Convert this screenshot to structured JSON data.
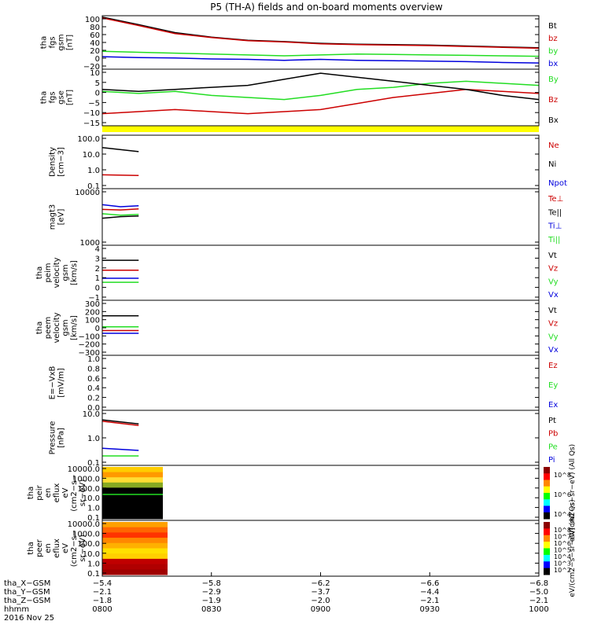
{
  "title": "P5 (TH-A) fields and on-board moments overview",
  "colors": {
    "black": "#000000",
    "red": "#cc0000",
    "green": "#22dd22",
    "blue": "#0000dd",
    "yellow": "#ffff00"
  },
  "chart_data": [
    {
      "type": "line",
      "id": "fgs_gsm",
      "ylabel": [
        "tha",
        "fgs",
        "gsm",
        "[nT]"
      ],
      "yticks": [
        "100",
        "80",
        "60",
        "40",
        "20",
        "0",
        "−20"
      ],
      "ylim": [
        -20,
        100
      ],
      "legend": [
        {
          "name": "Bt",
          "color": "black"
        },
        {
          "name": "bz",
          "color": "red"
        },
        {
          "name": "by",
          "color": "green"
        },
        {
          "name": "bx",
          "color": "blue"
        }
      ],
      "series": [
        {
          "name": "Bt",
          "color": "black",
          "x": [
            0,
            10,
            20,
            30,
            40,
            50,
            60,
            70,
            80,
            90,
            100,
            110,
            120
          ],
          "y": [
            97,
            80,
            62,
            52,
            45,
            42,
            38,
            36,
            35,
            34,
            32,
            30,
            28
          ]
        },
        {
          "name": "bz",
          "color": "red",
          "x": [
            0,
            10,
            20,
            30,
            40,
            50,
            60,
            70,
            80,
            90,
            100,
            110,
            120
          ],
          "y": [
            95,
            78,
            60,
            51,
            44,
            41,
            37,
            35,
            34,
            33,
            31,
            29,
            27
          ]
        },
        {
          "name": "by",
          "color": "green",
          "x": [
            0,
            10,
            20,
            30,
            40,
            50,
            60,
            70,
            80,
            90,
            100,
            110,
            120
          ],
          "y": [
            20,
            18,
            16,
            14,
            12,
            10,
            12,
            14,
            13,
            12,
            11,
            10,
            9
          ]
        },
        {
          "name": "bx",
          "color": "blue",
          "x": [
            0,
            10,
            20,
            30,
            40,
            50,
            60,
            70,
            80,
            90,
            100,
            110,
            120
          ],
          "y": [
            8,
            6,
            5,
            3,
            2,
            0,
            2,
            0,
            -1,
            -2,
            -3,
            -5,
            -6
          ]
        }
      ]
    },
    {
      "type": "line",
      "id": "fgs_gse",
      "ylabel": [
        "tha",
        "fgs",
        "gse",
        "[nT]"
      ],
      "yticks": [
        "10",
        "5",
        "0",
        "−5",
        "−10",
        "−15"
      ],
      "ylim": [
        -18,
        10
      ],
      "legend": [
        {
          "name": "By",
          "color": "green"
        },
        {
          "name": "Bz",
          "color": "red"
        },
        {
          "name": "Bx",
          "color": "black"
        }
      ],
      "series": [
        {
          "name": "By",
          "color": "green",
          "x": [
            0,
            10,
            20,
            30,
            40,
            50,
            60,
            70,
            80,
            90,
            100,
            110,
            120
          ],
          "y": [
            -1,
            -2,
            -1,
            -3,
            -4,
            -5,
            -3,
            0,
            1,
            3,
            4,
            3,
            2
          ]
        },
        {
          "name": "Bz",
          "color": "red",
          "x": [
            0,
            10,
            20,
            30,
            40,
            50,
            60,
            70,
            80,
            90,
            100,
            110,
            120
          ],
          "y": [
            -12,
            -11,
            -10,
            -11,
            -12,
            -11,
            -10,
            -7,
            -4,
            -2,
            0,
            -1,
            -2
          ]
        },
        {
          "name": "Bx",
          "color": "black",
          "x": [
            0,
            10,
            20,
            30,
            40,
            50,
            60,
            70,
            80,
            90,
            100,
            110,
            120
          ],
          "y": [
            0,
            -1,
            0,
            1,
            2,
            5,
            8,
            6,
            4,
            2,
            0,
            -3,
            -5
          ]
        }
      ]
    },
    {
      "type": "line",
      "id": "density",
      "ylabel": [
        "Density",
        "[cm−3]"
      ],
      "yticks": [
        "100.0",
        "10.0",
        "1.0",
        "0.1"
      ],
      "scale": "log",
      "ylim": [
        0.1,
        100
      ],
      "legend": [
        {
          "name": "Ne",
          "color": "red"
        },
        {
          "name": "Ni",
          "color": "black"
        },
        {
          "name": "Npot",
          "color": "blue"
        }
      ],
      "series": [
        {
          "name": "Ni",
          "color": "black",
          "x": [
            0,
            10
          ],
          "y": [
            20,
            12
          ]
        },
        {
          "name": "Ne",
          "color": "red",
          "x": [
            0,
            10
          ],
          "y": [
            0.6,
            0.55
          ]
        }
      ]
    },
    {
      "type": "line",
      "id": "temperature",
      "ylabel": [
        "magt3",
        "[eV]"
      ],
      "yticks": [
        "10000",
        "1000"
      ],
      "scale": "log",
      "ylim": [
        1000,
        10000
      ],
      "legend": [
        {
          "name": "Te⊥",
          "color": "red"
        },
        {
          "name": "Te||",
          "color": "black"
        },
        {
          "name": "Ti⊥",
          "color": "blue"
        },
        {
          "name": "Ti||",
          "color": "green"
        }
      ],
      "series": [
        {
          "name": "Ti⊥",
          "color": "blue",
          "x": [
            0,
            5,
            10
          ],
          "y": [
            5200,
            4800,
            5000
          ]
        },
        {
          "name": "Te⊥",
          "color": "red",
          "x": [
            0,
            5,
            10
          ],
          "y": [
            4300,
            4200,
            4400
          ]
        },
        {
          "name": "Ti||",
          "color": "green",
          "x": [
            0,
            5,
            10
          ],
          "y": [
            3600,
            3400,
            3500
          ]
        },
        {
          "name": "Te||",
          "color": "black",
          "x": [
            0,
            5,
            10
          ],
          "y": [
            3000,
            3200,
            3300
          ]
        }
      ]
    },
    {
      "type": "line",
      "id": "peim_velocity",
      "ylabel": [
        "tha",
        "peim",
        "velocity",
        "gsm",
        "[km/s]"
      ],
      "yticks": [
        "4",
        "3",
        "2",
        "1",
        "0",
        "−1"
      ],
      "ylim": [
        -1.5,
        4
      ],
      "legend": [
        {
          "name": "Vt",
          "color": "black"
        },
        {
          "name": "Vz",
          "color": "red"
        },
        {
          "name": "Vy",
          "color": "green"
        },
        {
          "name": "Vx",
          "color": "blue"
        }
      ],
      "series": [
        {
          "name": "Vt",
          "color": "black",
          "x": [
            0,
            10
          ],
          "y": [
            2.5,
            2.5
          ]
        },
        {
          "name": "Vz",
          "color": "red",
          "x": [
            0,
            10
          ],
          "y": [
            1.5,
            1.5
          ]
        },
        {
          "name": "Vx",
          "color": "blue",
          "x": [
            0,
            10
          ],
          "y": [
            0.7,
            0.7
          ]
        },
        {
          "name": "Vy",
          "color": "green",
          "x": [
            0,
            10
          ],
          "y": [
            0.3,
            0.3
          ]
        }
      ]
    },
    {
      "type": "line",
      "id": "peem_velocity",
      "ylabel": [
        "tha",
        "peem",
        "velocity",
        "gsm",
        "[km/s]"
      ],
      "yticks": [
        "300",
        "200",
        "100",
        "0",
        "−100",
        "−200",
        "−300"
      ],
      "ylim": [
        -300,
        300
      ],
      "legend": [
        {
          "name": "Vt",
          "color": "black"
        },
        {
          "name": "Vz",
          "color": "red"
        },
        {
          "name": "Vy",
          "color": "green"
        },
        {
          "name": "Vx",
          "color": "blue"
        }
      ],
      "series": [
        {
          "name": "Vt",
          "color": "black",
          "x": [
            0,
            10
          ],
          "y": [
            130,
            130
          ]
        },
        {
          "name": "Vy",
          "color": "green",
          "x": [
            0,
            10
          ],
          "y": [
            10,
            10
          ]
        },
        {
          "name": "Vz",
          "color": "red",
          "x": [
            0,
            10
          ],
          "y": [
            -30,
            -30
          ]
        },
        {
          "name": "Vx",
          "color": "blue",
          "x": [
            0,
            10
          ],
          "y": [
            -60,
            -60
          ]
        }
      ]
    },
    {
      "type": "line",
      "id": "efield",
      "ylabel": [
        "E=−VxB",
        "[mV/m]"
      ],
      "yticks": [
        "1.0",
        "0.8",
        "0.6",
        "0.4",
        "0.2",
        "0.0"
      ],
      "ylim": [
        0,
        1
      ],
      "legend": [
        {
          "name": "Ez",
          "color": "red"
        },
        {
          "name": "Ey",
          "color": "green"
        },
        {
          "name": "Ex",
          "color": "blue"
        }
      ],
      "series": []
    },
    {
      "type": "line",
      "id": "pressure",
      "ylabel": [
        "Pressure",
        "[nPa]"
      ],
      "yticks": [
        "10.0",
        "1.0",
        "0.1"
      ],
      "scale": "log",
      "ylim": [
        0.1,
        10
      ],
      "legend": [
        {
          "name": "Pt",
          "color": "black"
        },
        {
          "name": "Pb",
          "color": "red"
        },
        {
          "name": "Pe",
          "color": "green"
        },
        {
          "name": "Pi",
          "color": "blue"
        }
      ],
      "series": [
        {
          "name": "Pt",
          "color": "black",
          "x": [
            0,
            10
          ],
          "y": [
            4.5,
            3.2
          ]
        },
        {
          "name": "Pb",
          "color": "red",
          "x": [
            0,
            10
          ],
          "y": [
            4.0,
            2.8
          ]
        },
        {
          "name": "Pi",
          "color": "blue",
          "x": [
            0,
            10
          ],
          "y": [
            0.42,
            0.35
          ]
        },
        {
          "name": "Pe",
          "color": "green",
          "x": [
            0,
            10
          ],
          "y": [
            0.22,
            0.22
          ]
        }
      ]
    },
    {
      "type": "heatmap",
      "id": "peir",
      "ylabel": [
        "tha",
        "peir",
        "en",
        "eflux",
        "eV",
        "(cm2−s−",
        "sr−eV)"
      ],
      "yticks": [
        "10000.0",
        "1000.0",
        "100.0",
        "10.0",
        "1.0",
        "0.1"
      ],
      "scale": "log",
      "ylim": [
        0.1,
        30000
      ],
      "colorbar_label": "eV/(cm2−s−sr−eV) (All Qs)",
      "colorbar_ticks": [
        "10^8",
        "10^6",
        "10^4"
      ]
    },
    {
      "type": "heatmap",
      "id": "peer",
      "ylabel": [
        "tha",
        "peer",
        "en",
        "eflux",
        "eV",
        "(cm2−s−",
        "sr−eV)"
      ],
      "yticks": [
        "10000.0",
        "1000.0",
        "100.0",
        "10.0",
        "1.0",
        "0.1"
      ],
      "scale": "log",
      "ylim": [
        0.1,
        30000
      ],
      "colorbar_label": "eV/(cm2−s−sr−eV) (All Qs)",
      "colorbar_ticks": [
        "10^8",
        "10^7",
        "10^6",
        "10^5",
        "10^4",
        "10^3",
        "10^2"
      ]
    }
  ],
  "x_axis": {
    "rows": [
      {
        "label": "tha_X−GSM",
        "values": [
          "−5.4",
          "−5.8",
          "−6.2",
          "−6.6",
          "−6.8"
        ]
      },
      {
        "label": "tha_Y−GSM",
        "values": [
          "−2.1",
          "−2.9",
          "−3.7",
          "−4.4",
          "−5.0"
        ]
      },
      {
        "label": "tha_Z−GSM",
        "values": [
          "−1.8",
          "−1.9",
          "−2.0",
          "−2.1",
          "−2.1"
        ]
      },
      {
        "label": "hhmm",
        "values": [
          "0800",
          "0830",
          "0900",
          "0930",
          "1000"
        ]
      }
    ],
    "date": "2016 Nov 25",
    "range_minutes": [
      0,
      120
    ]
  }
}
